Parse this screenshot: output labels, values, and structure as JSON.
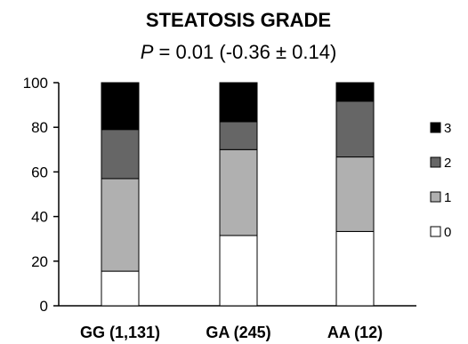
{
  "chart_data": {
    "type": "bar",
    "stacked": true,
    "title": "STEATOSIS GRADE",
    "subtitle": {
      "p_label": "P",
      "rest": " = 0.01 (-0.36 ± 0.14)"
    },
    "categories": [
      "GG (1,131)",
      "GA (245)",
      "AA (12)"
    ],
    "series": [
      {
        "name": "0",
        "color": "#ffffff",
        "values": [
          15.5,
          31.5,
          33.3
        ]
      },
      {
        "name": "1",
        "color": "#b0b0b0",
        "values": [
          41.5,
          38.5,
          33.4
        ]
      },
      {
        "name": "2",
        "color": "#666666",
        "values": [
          22,
          12.5,
          25
        ]
      },
      {
        "name": "3",
        "color": "#000000",
        "values": [
          21,
          17.5,
          8.3
        ]
      }
    ],
    "ylim": [
      0,
      100
    ],
    "yticks": [
      "0",
      "20",
      "40",
      "60",
      "80",
      "100"
    ],
    "xlabel": "",
    "ylabel": "",
    "legend_position": "right",
    "legend_order": [
      "3",
      "2",
      "1",
      "0"
    ],
    "grid": false
  }
}
